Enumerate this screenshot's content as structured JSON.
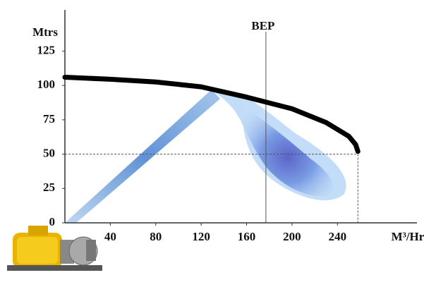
{
  "chart_data": {
    "type": "line",
    "ylabel": "Mtrs",
    "xlabel": "M³/Hr",
    "xlim": [
      0,
      310
    ],
    "ylim": [
      0,
      155
    ],
    "xticks": [
      40,
      80,
      120,
      160,
      200,
      240
    ],
    "yticks": [
      0,
      25,
      50,
      75,
      100,
      125
    ],
    "series": [
      {
        "color": "#000000",
        "x": [
          0,
          40,
          80,
          120,
          160,
          200,
          230,
          250,
          256,
          258
        ],
        "values": [
          106,
          104.5,
          102.5,
          99,
          91.5,
          83,
          73,
          63,
          57,
          52
        ]
      }
    ],
    "bep": {
      "label": "BEP",
      "x": 177
    },
    "duty_point": {
      "x": 258,
      "y": 50
    }
  }
}
